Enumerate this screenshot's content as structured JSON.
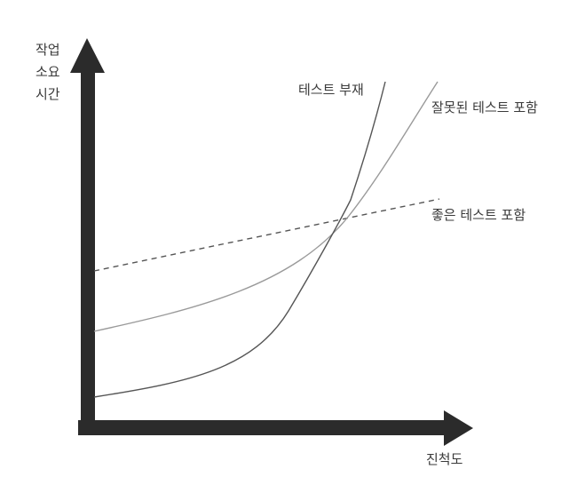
{
  "y_axis": {
    "label_lines": [
      "작업",
      "소요",
      "시간"
    ]
  },
  "x_axis": {
    "label": "진척도"
  },
  "series": [
    {
      "name": "테스트 부재",
      "style": "solid",
      "color": "#555555"
    },
    {
      "name": "잘못된 테스트 포함",
      "style": "solid",
      "color": "#9a9a9a"
    },
    {
      "name": "좋은 테스트 포함",
      "style": "dashed",
      "color": "#555555"
    }
  ],
  "colors": {
    "axis": "#2b2b2b",
    "text": "#3a3a3a"
  }
}
